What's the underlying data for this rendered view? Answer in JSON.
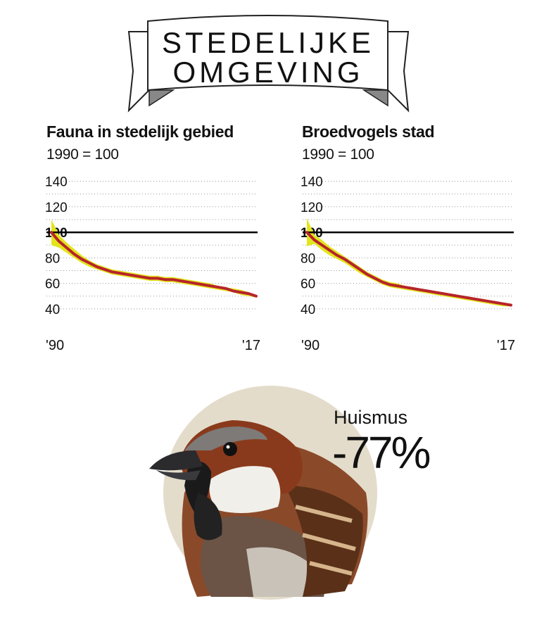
{
  "header": {
    "line1": "STEDELIJKE",
    "line2": "OMGEVING"
  },
  "colors": {
    "band": "#e2e51c",
    "line": "#b7242a",
    "reference": "#000000",
    "grid": "#999999",
    "circle": "#e4dccb"
  },
  "callout": {
    "species": "Huismus",
    "change": "-77%",
    "icon": "house-sparrow-photo"
  },
  "chart_data": [
    {
      "type": "line",
      "title": "Fauna in stedelijk gebied",
      "subtitle": "1990 = 100",
      "x_tick_labels": [
        "'90",
        "'17"
      ],
      "y_ticks": [
        40,
        60,
        80,
        100,
        120,
        140
      ],
      "ylim": [
        35,
        148
      ],
      "xlim": [
        1990,
        2017
      ],
      "reference_line": 100,
      "grid": true,
      "x": [
        1990,
        1991,
        1992,
        1993,
        1994,
        1995,
        1996,
        1997,
        1998,
        1999,
        2000,
        2001,
        2002,
        2003,
        2004,
        2005,
        2006,
        2007,
        2008,
        2009,
        2010,
        2011,
        2012,
        2013,
        2014,
        2015,
        2016,
        2017
      ],
      "values": [
        100,
        93,
        88,
        83,
        79,
        76,
        73,
        71,
        69,
        68,
        67,
        66,
        65,
        64,
        64,
        63,
        63,
        62,
        61,
        60,
        59,
        58,
        57,
        56,
        54,
        53,
        52,
        50
      ],
      "band_upper": [
        110,
        98,
        92,
        87,
        82,
        78,
        75,
        73,
        71,
        70,
        69,
        68,
        67,
        66,
        66,
        65,
        65,
        64,
        63,
        62,
        61,
        60,
        58,
        57,
        56,
        55,
        53,
        51
      ],
      "band_lower": [
        90,
        88,
        84,
        80,
        76,
        73,
        71,
        69,
        67,
        66,
        65,
        64,
        63,
        62,
        62,
        61,
        61,
        60,
        59,
        58,
        57,
        56,
        55,
        54,
        53,
        51,
        50,
        49
      ]
    },
    {
      "type": "line",
      "title": "Broedvogels stad",
      "subtitle": "1990 = 100",
      "x_tick_labels": [
        "'90",
        "'17"
      ],
      "y_ticks": [
        40,
        60,
        80,
        100,
        120,
        140
      ],
      "ylim": [
        35,
        148
      ],
      "xlim": [
        1990,
        2017
      ],
      "reference_line": 100,
      "grid": true,
      "x": [
        1990,
        1991,
        1992,
        1993,
        1994,
        1995,
        1996,
        1997,
        1998,
        1999,
        2000,
        2001,
        2002,
        2003,
        2004,
        2005,
        2006,
        2007,
        2008,
        2009,
        2010,
        2011,
        2012,
        2013,
        2014,
        2015,
        2016,
        2017
      ],
      "values": [
        100,
        94,
        90,
        86,
        82,
        79,
        75,
        71,
        67,
        64,
        61,
        59,
        58,
        57,
        56,
        55,
        54,
        53,
        52,
        51,
        50,
        49,
        48,
        47,
        46,
        45,
        44,
        43
      ],
      "band_upper": [
        111,
        98,
        94,
        89,
        85,
        81,
        77,
        73,
        69,
        66,
        63,
        61,
        60,
        58,
        57,
        56,
        55,
        54,
        53,
        52,
        51,
        50,
        49,
        48,
        47,
        46,
        45,
        44
      ],
      "band_lower": [
        89,
        91,
        86,
        82,
        79,
        76,
        72,
        68,
        65,
        62,
        59,
        57,
        56,
        55,
        54,
        53,
        52,
        51,
        50,
        49,
        48,
        47,
        46,
        45,
        44,
        43,
        42,
        42
      ]
    }
  ]
}
